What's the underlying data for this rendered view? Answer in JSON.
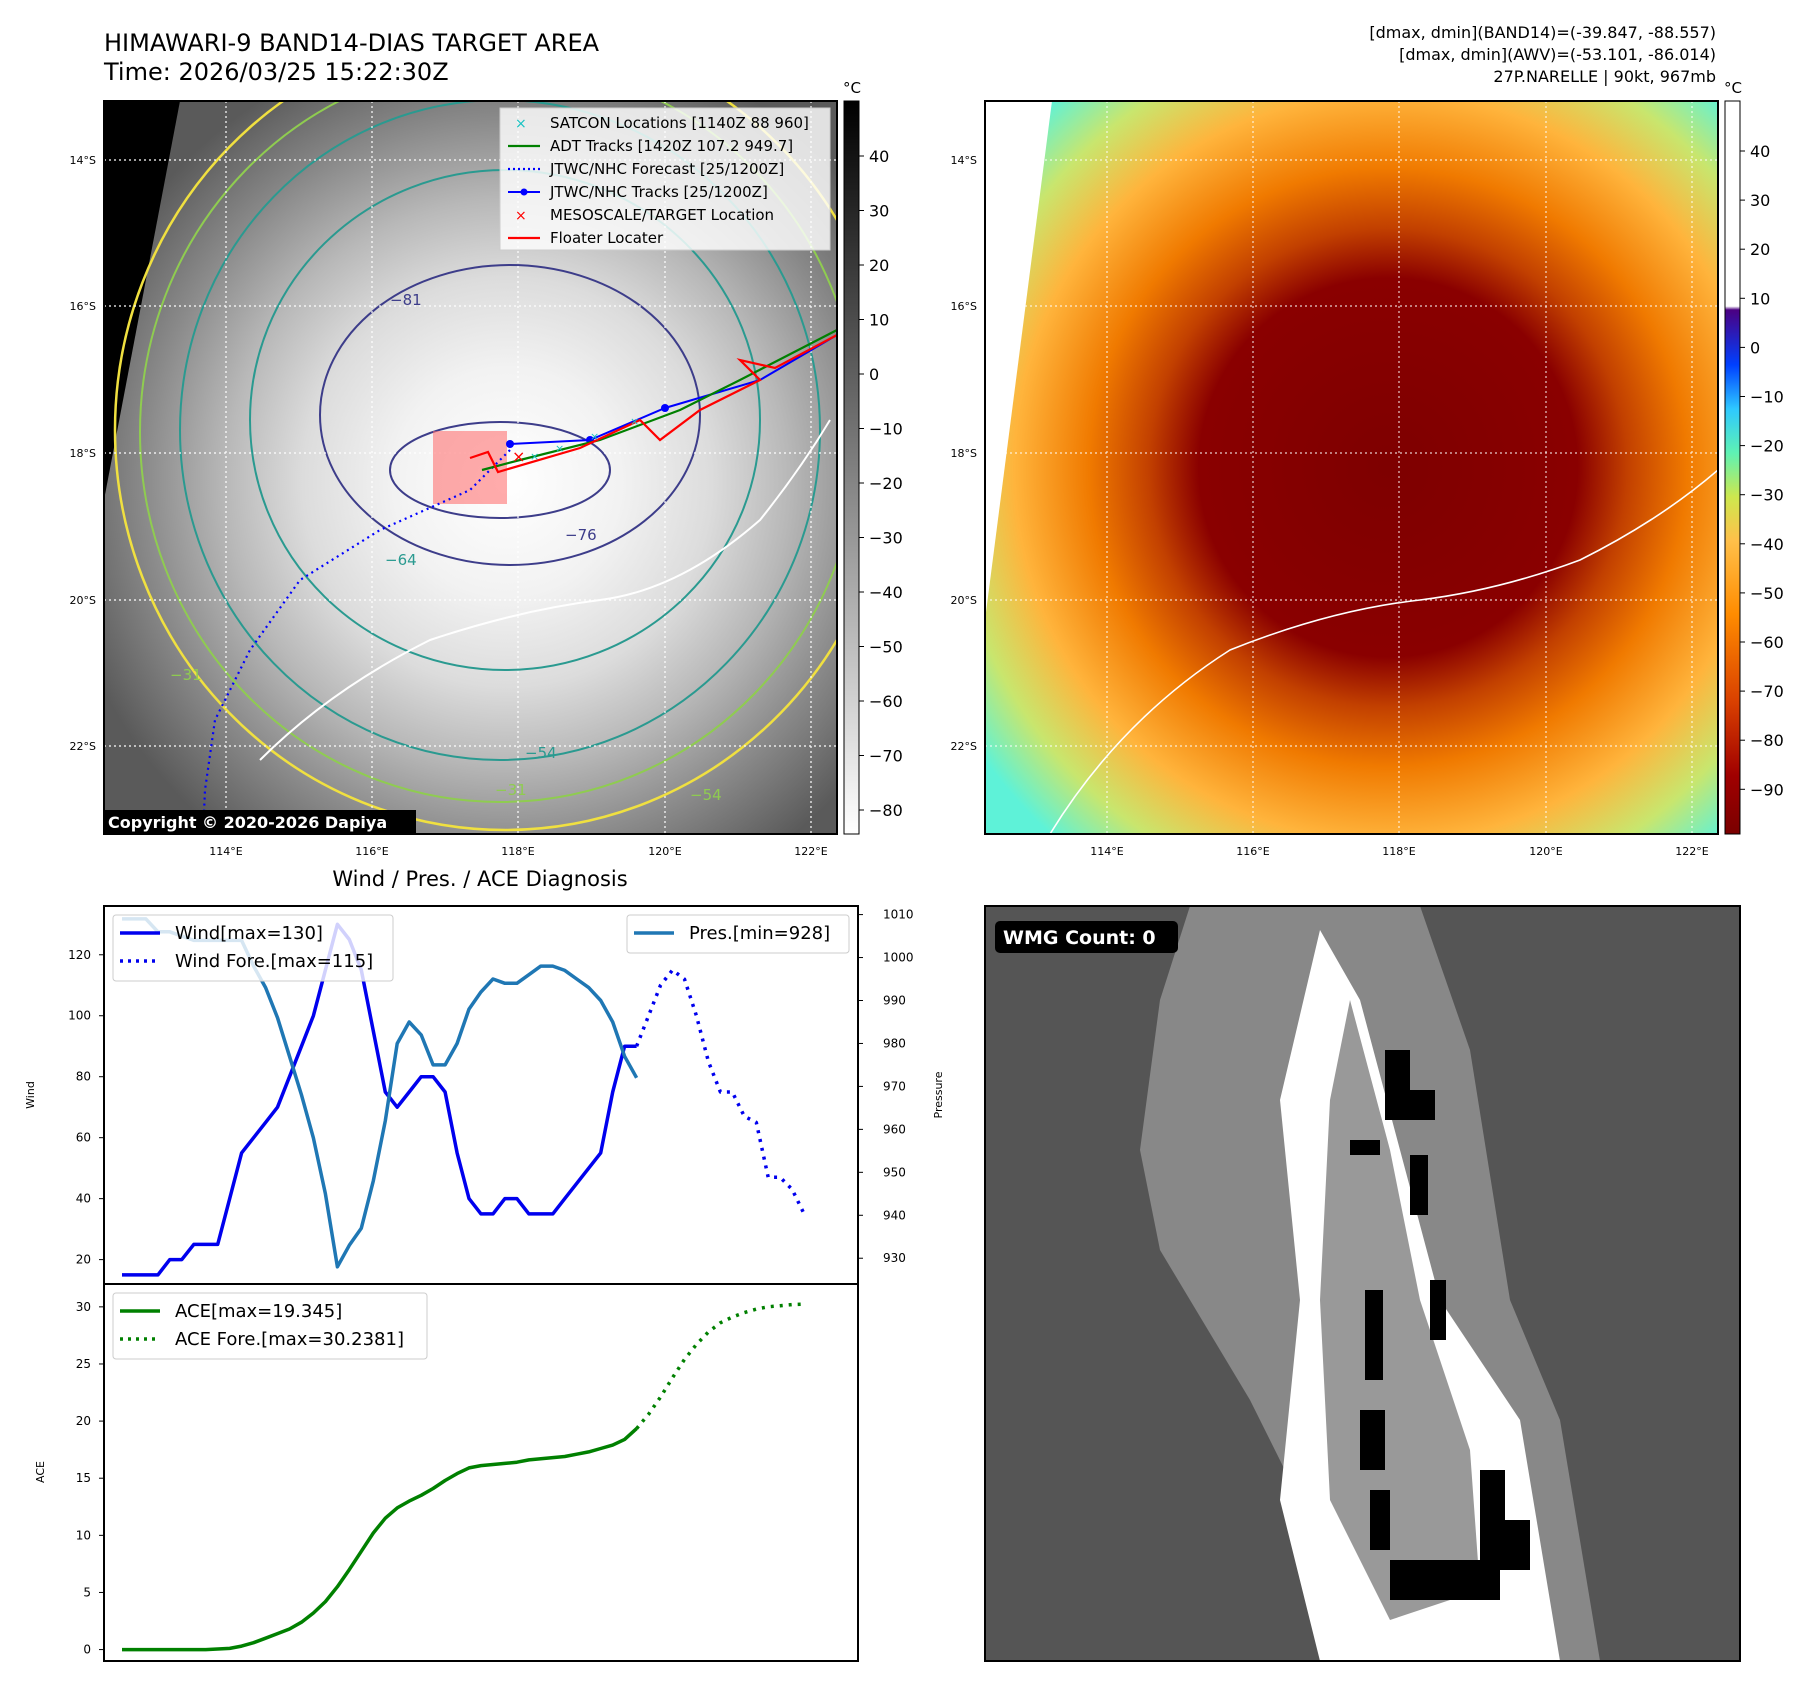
{
  "header": {
    "title_line1": "HIMAWARI-9 BAND14-DIAS TARGET AREA",
    "title_line2": "Time: 2026/03/25 15:22:30Z",
    "stats_line1": "[dmax, dmin](BAND14)=(-39.847, -88.557)",
    "stats_line2": "[dmax, dmin](AWV)=(-53.101, -86.014)",
    "stats_line3": "27P.NARELLE | 90kt, 967mb"
  },
  "map_common": {
    "lat_labels": [
      "14°S",
      "16°S",
      "18°S",
      "20°S",
      "22°S"
    ],
    "lon_labels": [
      "114°E",
      "116°E",
      "118°E",
      "120°E",
      "122°E"
    ]
  },
  "ir_panel": {
    "colorbar_unit": "°C",
    "colorbar_ticks": [
      "40",
      "30",
      "20",
      "10",
      "0",
      "−10",
      "−20",
      "−30",
      "−40",
      "−50",
      "−60",
      "−70",
      "−80"
    ],
    "copyright": "Copyright © 2020-2026 Dapiya",
    "contour_labels": [
      "−81",
      "−76",
      "−64",
      "−54",
      "−31",
      "−54",
      "−31"
    ],
    "legend": [
      {
        "label": "SATCON Locations [1140Z 88 960]",
        "color": "#19c3c3",
        "marker": "x"
      },
      {
        "label": "ADT Tracks [1420Z 107.2 949.7]",
        "color": "#008000",
        "marker": "line"
      },
      {
        "label": "JTWC/NHC Forecast [25/1200Z]",
        "color": "#0000ff",
        "marker": "dotted"
      },
      {
        "label": "JTWC/NHC Tracks [25/1200Z]",
        "color": "#0000ff",
        "marker": "line-dot"
      },
      {
        "label": "MESOSCALE/TARGET Location",
        "color": "#ff0000",
        "marker": "x"
      },
      {
        "label": "Floater Locater",
        "color": "#ff0000",
        "marker": "line"
      }
    ]
  },
  "wv_panel": {
    "colorbar_unit": "°C",
    "colorbar_ticks": [
      "40",
      "30",
      "20",
      "10",
      "0",
      "−10",
      "−20",
      "−30",
      "−40",
      "−50",
      "−60",
      "−70",
      "−80",
      "−90"
    ]
  },
  "wmg_panel": {
    "badge": "WMG Count: 0"
  },
  "chart_data": [
    {
      "type": "line",
      "title": "Wind / Pres. / ACE Diagnosis",
      "ylabel": "Wind",
      "ylabel_right": "Pressure",
      "ylim": [
        12,
        136
      ],
      "ylim_right": [
        924,
        1012
      ],
      "yticks": [
        20,
        40,
        60,
        80,
        100,
        120
      ],
      "yticks_right": [
        930,
        940,
        950,
        960,
        970,
        980,
        990,
        1000,
        1010
      ],
      "series": [
        {
          "name": "Wind[max=130]",
          "axis": "left",
          "style": "solid",
          "color": "#0000ee",
          "x": [
            0,
            1,
            2,
            3,
            4,
            5,
            6,
            7,
            8,
            9,
            10,
            11,
            12,
            13,
            14,
            15,
            16,
            17,
            18,
            19,
            20,
            21,
            22,
            23,
            24,
            25,
            26,
            27,
            28,
            29,
            30,
            31,
            32,
            33,
            34,
            35,
            36,
            37,
            38,
            39,
            40,
            41,
            42,
            43
          ],
          "values": [
            15,
            15,
            15,
            15,
            20,
            20,
            25,
            25,
            25,
            40,
            55,
            60,
            65,
            70,
            80,
            90,
            100,
            115,
            130,
            125,
            115,
            95,
            75,
            70,
            75,
            80,
            80,
            75,
            55,
            40,
            35,
            35,
            40,
            40,
            35,
            35,
            35,
            40,
            45,
            50,
            55,
            75,
            90,
            90
          ]
        },
        {
          "name": "Wind Fore.[max=115]",
          "axis": "left",
          "style": "dotted",
          "color": "#0000ee",
          "x": [
            43,
            44,
            45,
            46,
            47,
            48,
            49,
            50,
            51,
            52,
            53,
            54,
            55,
            56,
            57
          ],
          "values": [
            90,
            100,
            110,
            115,
            112,
            100,
            85,
            75,
            75,
            67,
            65,
            47,
            47,
            43,
            35
          ]
        },
        {
          "name": "Pres.[min=928]",
          "axis": "right",
          "style": "solid",
          "color": "#1f77b4",
          "x": [
            0,
            1,
            2,
            3,
            4,
            5,
            6,
            7,
            8,
            9,
            10,
            11,
            12,
            13,
            14,
            15,
            16,
            17,
            18,
            19,
            20,
            21,
            22,
            23,
            24,
            25,
            26,
            27,
            28,
            29,
            30,
            31,
            32,
            33,
            34,
            35,
            36,
            37,
            38,
            39,
            40,
            41,
            42,
            43
          ],
          "values": [
            1009,
            1009,
            1009,
            1006,
            1006,
            1005,
            1004,
            1004,
            1004,
            1004,
            1004,
            998,
            993,
            986,
            977,
            968,
            958,
            945,
            928,
            933,
            937,
            948,
            962,
            980,
            985,
            982,
            975,
            975,
            980,
            988,
            992,
            995,
            994,
            994,
            996,
            998,
            998,
            997,
            995,
            993,
            990,
            985,
            977,
            972
          ]
        },
        {
          "name": "ACE[max=19.345]",
          "axis": "ace",
          "style": "solid",
          "color": "#008000",
          "x": [
            0,
            1,
            2,
            3,
            4,
            5,
            6,
            7,
            8,
            9,
            10,
            11,
            12,
            13,
            14,
            15,
            16,
            17,
            18,
            19,
            20,
            21,
            22,
            23,
            24,
            25,
            26,
            27,
            28,
            29,
            30,
            31,
            32,
            33,
            34,
            35,
            36,
            37,
            38,
            39,
            40,
            41,
            42,
            43
          ],
          "values": [
            0,
            0,
            0,
            0,
            0,
            0,
            0,
            0,
            0.05,
            0.1,
            0.3,
            0.6,
            1.0,
            1.4,
            1.8,
            2.4,
            3.2,
            4.2,
            5.5,
            7.0,
            8.6,
            10.2,
            11.5,
            12.4,
            13.0,
            13.5,
            14.1,
            14.8,
            15.4,
            15.9,
            16.1,
            16.2,
            16.3,
            16.4,
            16.6,
            16.7,
            16.8,
            16.9,
            17.1,
            17.3,
            17.6,
            17.9,
            18.4,
            19.345
          ]
        },
        {
          "name": "ACE Fore.[max=30.2381]",
          "axis": "ace",
          "style": "dotted",
          "color": "#008000",
          "x": [
            43,
            44,
            45,
            46,
            47,
            48,
            49,
            50,
            51,
            52,
            53,
            54,
            55,
            56,
            57
          ],
          "values": [
            19.345,
            20.6,
            22.1,
            23.8,
            25.4,
            26.7,
            27.8,
            28.6,
            29.1,
            29.5,
            29.8,
            30.0,
            30.1,
            30.2,
            30.2381
          ]
        }
      ],
      "ace_ylabel": "ACE",
      "ace_ylim": [
        -1,
        32
      ],
      "ace_yticks": [
        0,
        5,
        10,
        15,
        20,
        25,
        30
      ]
    }
  ]
}
